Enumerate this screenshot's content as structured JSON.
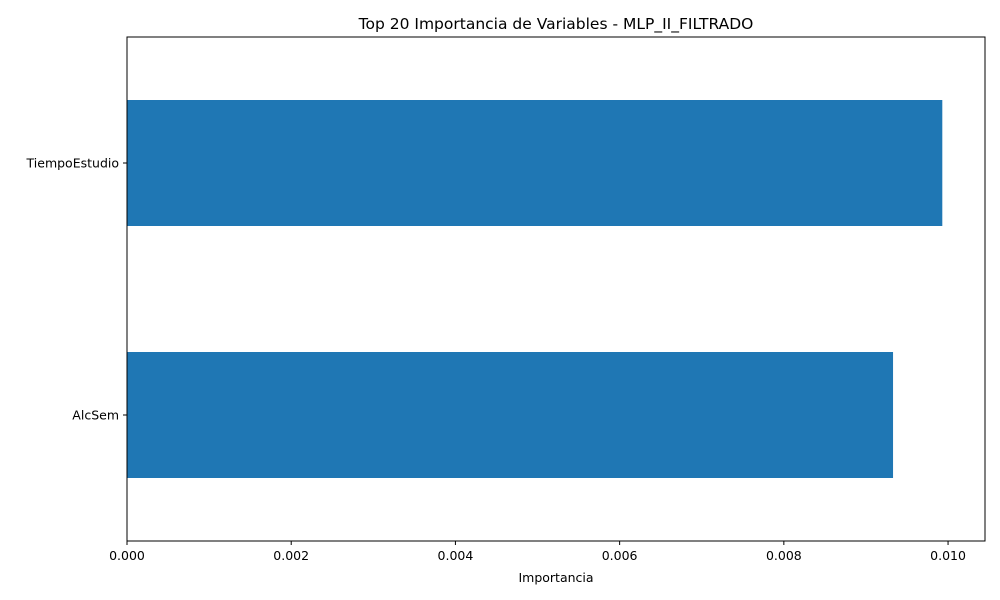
{
  "chart_data": {
    "type": "bar",
    "orientation": "horizontal",
    "title": "Top 20 Importancia de Variables - MLP_II_FILTRADO",
    "xlabel": "Importancia",
    "ylabel": "",
    "categories": [
      "TiempoEstudio",
      "AlcSem"
    ],
    "values": [
      0.00993,
      0.00933
    ],
    "xlim": [
      0,
      0.01045
    ],
    "xticks": [
      0.0,
      0.002,
      0.004,
      0.006,
      0.008,
      0.01
    ],
    "xtick_labels": [
      "0.000",
      "0.002",
      "0.004",
      "0.006",
      "0.008",
      "0.010"
    ],
    "bar_color": "#1f77b4",
    "grid": false,
    "legend": "none"
  }
}
